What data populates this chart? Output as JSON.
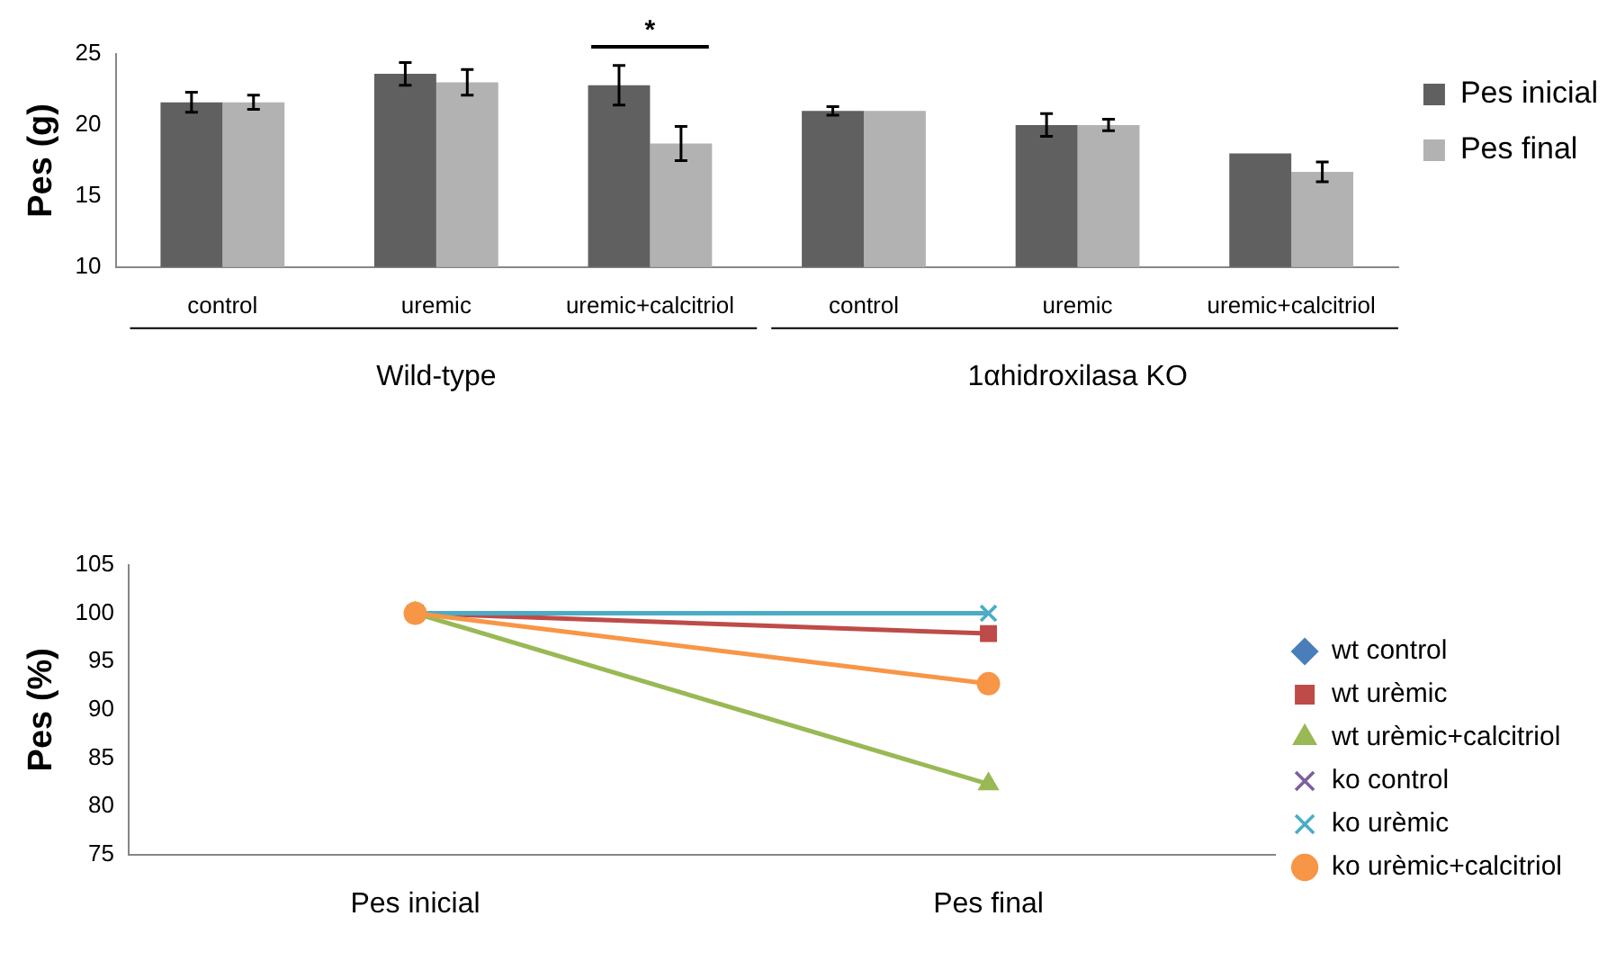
{
  "chart_data": [
    {
      "type": "bar",
      "ylabel": "Pes (g)",
      "categories": [
        "control",
        "uremic",
        "uremic+calcitriol",
        "control",
        "uremic",
        "uremic+calcitriol"
      ],
      "series": [
        {
          "name": "Pes inicial",
          "color": "#606060",
          "values": [
            21.6,
            23.6,
            22.8,
            21.0,
            20.0,
            18.0
          ],
          "errors": [
            0.7,
            0.8,
            1.4,
            0.3,
            0.8,
            null
          ]
        },
        {
          "name": "Pes final",
          "color": "#b2b2b2",
          "values": [
            21.6,
            23.0,
            18.7,
            21.0,
            20.0,
            16.7
          ],
          "errors": [
            0.5,
            0.9,
            1.2,
            null,
            0.4,
            0.7
          ]
        }
      ],
      "ylim": [
        10,
        25
      ],
      "yticks": [
        10,
        15,
        20,
        25
      ],
      "grid": false,
      "legend": "top right",
      "annotations": [
        "Wild-type",
        "1αhidroxilasa KO",
        "*"
      ]
    },
    {
      "type": "line",
      "ylabel": "Pes (%)",
      "categories": [
        "Pes inicial",
        "Pes final"
      ],
      "series": [
        {
          "name": "wt control",
          "color": "#4a7ebb",
          "marker": "diamond",
          "values": [
            null,
            null
          ]
        },
        {
          "name": "wt urèmic",
          "color": "#be4b48",
          "marker": "square",
          "values": [
            100,
            97.9
          ]
        },
        {
          "name": "wt urèmic+calcitriol",
          "color": "#98b954",
          "marker": "triangle",
          "values": [
            100,
            82.3
          ]
        },
        {
          "name": "ko control",
          "color": "#7d5fa0",
          "marker": "cross",
          "values": [
            null,
            null
          ]
        },
        {
          "name": "ko urèmic",
          "color": "#4bacc6",
          "marker": "cross",
          "values": [
            100,
            100
          ]
        },
        {
          "name": "ko urèmic+calcitriol",
          "color": "#f79646",
          "marker": "circle",
          "values": [
            100,
            92.7
          ]
        }
      ],
      "ylim": [
        75,
        105
      ],
      "yticks": [
        75,
        80,
        85,
        90,
        95,
        100,
        105
      ],
      "grid": false,
      "legend": "right"
    }
  ]
}
